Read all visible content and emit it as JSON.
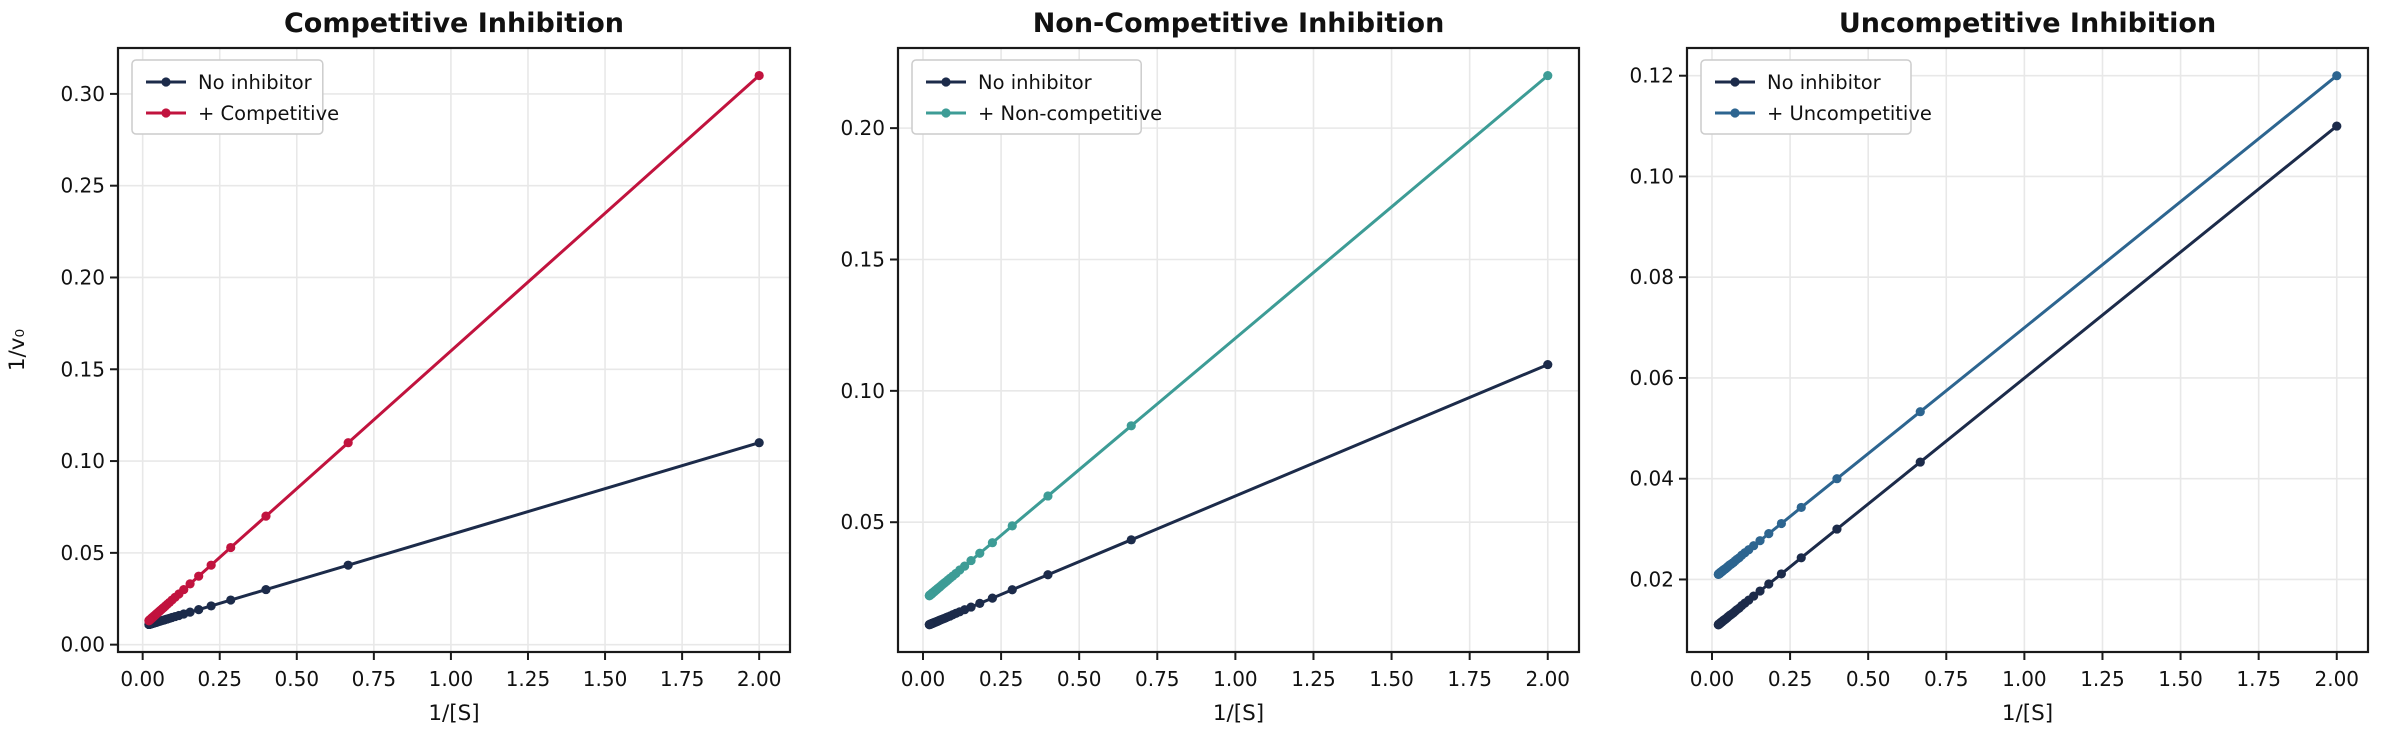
{
  "figure": {
    "background": "#ffffff"
  },
  "styles": {
    "grid_color": "#e8e8e8",
    "spine_color": "#1a1a1a",
    "tick_color": "#1a1a1a",
    "text_color": "#111111",
    "title_color": "#0d0d0d",
    "legend_bg": "#ffffff",
    "legend_border": "#cccccc"
  },
  "chart_data": [
    {
      "type": "line",
      "title": "Competitive Inhibition",
      "xlabel": "1/[S]",
      "ylabel": "1/v₀",
      "xlim": [
        -0.08,
        2.1
      ],
      "ylim": [
        -0.004,
        0.325
      ],
      "xticks": [
        0,
        0.25,
        0.5,
        0.75,
        1.0,
        1.25,
        1.5,
        1.75,
        2.0
      ],
      "xtick_labels": [
        "0.00",
        "0.25",
        "0.50",
        "0.75",
        "1.00",
        "1.25",
        "1.50",
        "1.75",
        "2.00"
      ],
      "yticks": [
        0,
        0.05,
        0.1,
        0.15,
        0.2,
        0.25,
        0.3
      ],
      "ytick_labels": [
        "0.00",
        "0.05",
        "0.10",
        "0.15",
        "0.20",
        "0.25",
        "0.30"
      ],
      "grid": true,
      "legend_position": "upper-left",
      "x": [
        2.0,
        0.6667,
        0.4,
        0.2857,
        0.2222,
        0.1818,
        0.1538,
        0.1333,
        0.1176,
        0.1053,
        0.0952,
        0.087,
        0.08,
        0.0741,
        0.069,
        0.0645,
        0.0606,
        0.0571,
        0.0541,
        0.0513,
        0.0488,
        0.0465,
        0.0444,
        0.0426,
        0.0408,
        0.0392,
        0.0377,
        0.0364,
        0.0351,
        0.0339,
        0.0328,
        0.0317,
        0.0308,
        0.0299,
        0.029,
        0.0282,
        0.0274,
        0.0267,
        0.026,
        0.0253,
        0.0247,
        0.0241,
        0.0235,
        0.023,
        0.0225,
        0.022,
        0.0215,
        0.0211,
        0.0206,
        0.0202
      ],
      "series": [
        {
          "name": "No inhibitor",
          "color": "#1c2b4a",
          "y": [
            0.11,
            0.0433,
            0.03,
            0.0243,
            0.0211,
            0.0191,
            0.0177,
            0.0167,
            0.0159,
            0.0153,
            0.0148,
            0.0143,
            0.014,
            0.0137,
            0.0134,
            0.0132,
            0.013,
            0.0129,
            0.0127,
            0.0126,
            0.0124,
            0.0123,
            0.0122,
            0.0121,
            0.012,
            0.012,
            0.0119,
            0.0118,
            0.0118,
            0.0117,
            0.0116,
            0.0116,
            0.0115,
            0.0115,
            0.0115,
            0.0114,
            0.0114,
            0.0113,
            0.0113,
            0.0113,
            0.0112,
            0.0112,
            0.0112,
            0.0111,
            0.0111,
            0.0111,
            0.0111,
            0.0111,
            0.011,
            0.011
          ]
        },
        {
          "name": "+ Competitive",
          "color": "#c1133e",
          "y": [
            0.31,
            0.11,
            0.07,
            0.0529,
            0.0433,
            0.0373,
            0.0331,
            0.03,
            0.0276,
            0.0258,
            0.0243,
            0.023,
            0.022,
            0.0211,
            0.0203,
            0.0197,
            0.0191,
            0.0186,
            0.0181,
            0.0177,
            0.0173,
            0.017,
            0.0167,
            0.0164,
            0.0161,
            0.0159,
            0.0157,
            0.0155,
            0.0153,
            0.0151,
            0.0149,
            0.0148,
            0.0146,
            0.0145,
            0.0144,
            0.0142,
            0.0141,
            0.014,
            0.0139,
            0.0138,
            0.0137,
            0.0136,
            0.0135,
            0.0134,
            0.0134,
            0.0133,
            0.0132,
            0.0132,
            0.0131,
            0.013
          ]
        }
      ]
    },
    {
      "type": "line",
      "title": "Non-Competitive Inhibition",
      "xlabel": "1/[S]",
      "ylabel": "",
      "xlim": [
        -0.08,
        2.1
      ],
      "ylim": [
        0.0006,
        0.2305
      ],
      "xticks": [
        0,
        0.25,
        0.5,
        0.75,
        1.0,
        1.25,
        1.5,
        1.75,
        2.0
      ],
      "xtick_labels": [
        "0.00",
        "0.25",
        "0.50",
        "0.75",
        "1.00",
        "1.25",
        "1.50",
        "1.75",
        "2.00"
      ],
      "yticks": [
        0.05,
        0.1,
        0.15,
        0.2
      ],
      "ytick_labels": [
        "0.05",
        "0.10",
        "0.15",
        "0.20"
      ],
      "grid": true,
      "legend_position": "upper-left",
      "x": [
        2.0,
        0.6667,
        0.4,
        0.2857,
        0.2222,
        0.1818,
        0.1538,
        0.1333,
        0.1176,
        0.1053,
        0.0952,
        0.087,
        0.08,
        0.0741,
        0.069,
        0.0645,
        0.0606,
        0.0571,
        0.0541,
        0.0513,
        0.0488,
        0.0465,
        0.0444,
        0.0426,
        0.0408,
        0.0392,
        0.0377,
        0.0364,
        0.0351,
        0.0339,
        0.0328,
        0.0317,
        0.0308,
        0.0299,
        0.029,
        0.0282,
        0.0274,
        0.0267,
        0.026,
        0.0253,
        0.0247,
        0.0241,
        0.0235,
        0.023,
        0.0225,
        0.022,
        0.0215,
        0.0211,
        0.0206,
        0.0202
      ],
      "series": [
        {
          "name": "No inhibitor",
          "color": "#1c2b4a",
          "y": [
            0.11,
            0.0433,
            0.03,
            0.0243,
            0.0211,
            0.0191,
            0.0177,
            0.0167,
            0.0159,
            0.0153,
            0.0148,
            0.0143,
            0.014,
            0.0137,
            0.0134,
            0.0132,
            0.013,
            0.0129,
            0.0127,
            0.0126,
            0.0124,
            0.0123,
            0.0122,
            0.0121,
            0.012,
            0.012,
            0.0119,
            0.0118,
            0.0118,
            0.0117,
            0.0116,
            0.0116,
            0.0115,
            0.0115,
            0.0115,
            0.0114,
            0.0114,
            0.0113,
            0.0113,
            0.0113,
            0.0112,
            0.0112,
            0.0112,
            0.0111,
            0.0111,
            0.0111,
            0.0111,
            0.0111,
            0.011,
            0.011
          ]
        },
        {
          "name": "+ Non-competitive",
          "color": "#3d9c96",
          "y": [
            0.22,
            0.0867,
            0.06,
            0.0486,
            0.0422,
            0.0382,
            0.0354,
            0.0333,
            0.0318,
            0.0305,
            0.0295,
            0.0287,
            0.028,
            0.0274,
            0.0269,
            0.0265,
            0.0261,
            0.0257,
            0.0254,
            0.0251,
            0.0249,
            0.0247,
            0.0244,
            0.0243,
            0.0241,
            0.0239,
            0.0238,
            0.0236,
            0.0235,
            0.0234,
            0.0233,
            0.0232,
            0.0231,
            0.023,
            0.0229,
            0.0228,
            0.0227,
            0.0227,
            0.0226,
            0.0225,
            0.0225,
            0.0224,
            0.0224,
            0.0223,
            0.0222,
            0.0222,
            0.0222,
            0.0221,
            0.0221,
            0.022
          ]
        }
      ]
    },
    {
      "type": "line",
      "title": "Uncompetitive Inhibition",
      "xlabel": "1/[S]",
      "ylabel": "",
      "xlim": [
        -0.08,
        2.1
      ],
      "ylim": [
        0.0056,
        0.1255
      ],
      "xticks": [
        0,
        0.25,
        0.5,
        0.75,
        1.0,
        1.25,
        1.5,
        1.75,
        2.0
      ],
      "xtick_labels": [
        "0.00",
        "0.25",
        "0.50",
        "0.75",
        "1.00",
        "1.25",
        "1.50",
        "1.75",
        "2.00"
      ],
      "yticks": [
        0.02,
        0.04,
        0.06,
        0.08,
        0.1,
        0.12
      ],
      "ytick_labels": [
        "0.02",
        "0.04",
        "0.06",
        "0.08",
        "0.10",
        "0.12"
      ],
      "grid": true,
      "legend_position": "upper-left",
      "x": [
        2.0,
        0.6667,
        0.4,
        0.2857,
        0.2222,
        0.1818,
        0.1538,
        0.1333,
        0.1176,
        0.1053,
        0.0952,
        0.087,
        0.08,
        0.0741,
        0.069,
        0.0645,
        0.0606,
        0.0571,
        0.0541,
        0.0513,
        0.0488,
        0.0465,
        0.0444,
        0.0426,
        0.0408,
        0.0392,
        0.0377,
        0.0364,
        0.0351,
        0.0339,
        0.0328,
        0.0317,
        0.0308,
        0.0299,
        0.029,
        0.0282,
        0.0274,
        0.0267,
        0.026,
        0.0253,
        0.0247,
        0.0241,
        0.0235,
        0.023,
        0.0225,
        0.022,
        0.0215,
        0.0211,
        0.0206,
        0.0202
      ],
      "series": [
        {
          "name": "No inhibitor",
          "color": "#1c2b4a",
          "y": [
            0.11,
            0.0433,
            0.03,
            0.0243,
            0.0211,
            0.0191,
            0.0177,
            0.0167,
            0.0159,
            0.0153,
            0.0148,
            0.0143,
            0.014,
            0.0137,
            0.0134,
            0.0132,
            0.013,
            0.0129,
            0.0127,
            0.0126,
            0.0124,
            0.0123,
            0.0122,
            0.0121,
            0.012,
            0.012,
            0.0119,
            0.0118,
            0.0118,
            0.0117,
            0.0116,
            0.0116,
            0.0115,
            0.0115,
            0.0115,
            0.0114,
            0.0114,
            0.0113,
            0.0113,
            0.0113,
            0.0112,
            0.0112,
            0.0112,
            0.0111,
            0.0111,
            0.0111,
            0.0111,
            0.0111,
            0.011,
            0.011
          ]
        },
        {
          "name": "+ Uncompetitive",
          "color": "#2d6590",
          "y": [
            0.12,
            0.0533,
            0.04,
            0.0343,
            0.0311,
            0.0291,
            0.0277,
            0.0267,
            0.0259,
            0.0253,
            0.0248,
            0.0243,
            0.024,
            0.0237,
            0.0234,
            0.0232,
            0.023,
            0.0229,
            0.0227,
            0.0226,
            0.0224,
            0.0223,
            0.0222,
            0.0221,
            0.022,
            0.022,
            0.0219,
            0.0218,
            0.0218,
            0.0217,
            0.0216,
            0.0216,
            0.0215,
            0.0215,
            0.0215,
            0.0214,
            0.0214,
            0.0213,
            0.0213,
            0.0213,
            0.0212,
            0.0212,
            0.0212,
            0.0211,
            0.0211,
            0.0211,
            0.0211,
            0.0211,
            0.021,
            0.021
          ]
        }
      ]
    }
  ]
}
